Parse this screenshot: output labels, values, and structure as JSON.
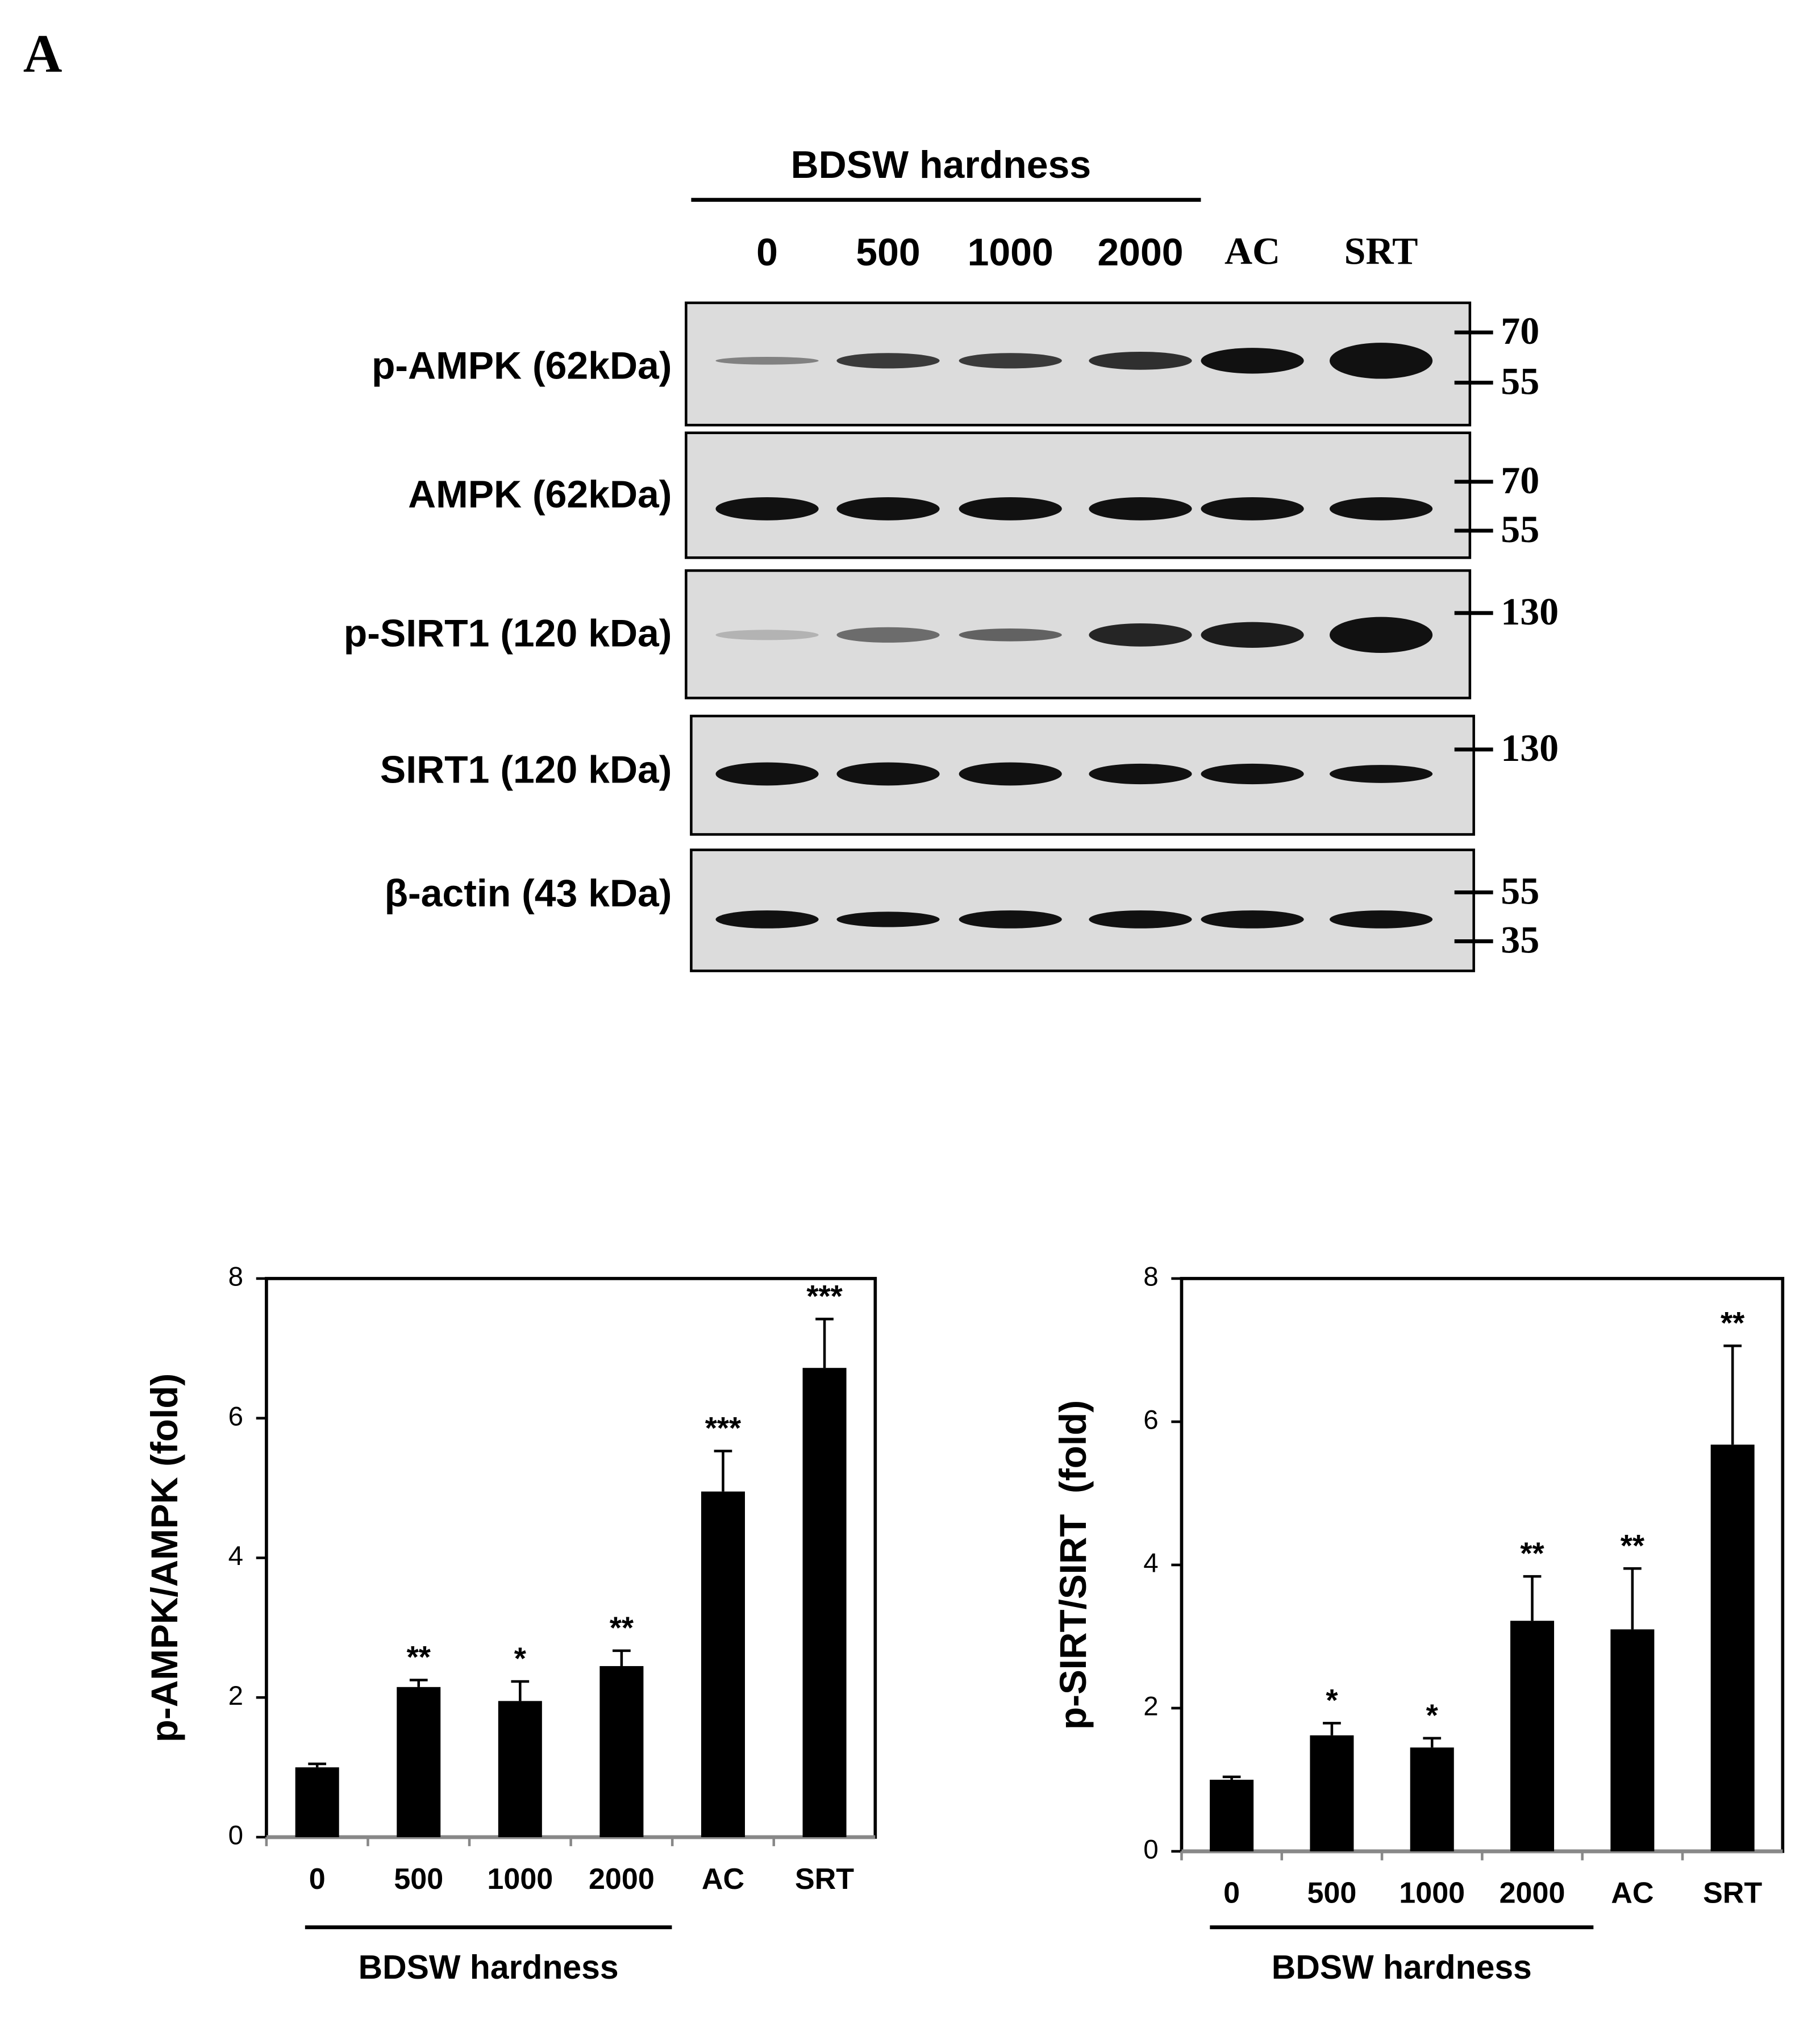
{
  "panel_label": "A",
  "blot": {
    "header": "BDSW hardness",
    "lanes": [
      "0",
      "500",
      "1000",
      "2000",
      "AC",
      "SRT"
    ],
    "rows": [
      {
        "label": "p-AMPK (62kDa)",
        "markers": [
          "70",
          "55"
        ]
      },
      {
        "label": "AMPK (62kDa)",
        "markers": [
          "70",
          "55"
        ]
      },
      {
        "label": "p-SIRT1 (120 kDa)",
        "markers": [
          "130"
        ]
      },
      {
        "label": "SIRT1 (120 kDa)",
        "markers": [
          "130"
        ]
      },
      {
        "label": "β-actin (43 kDa)",
        "markers": [
          "55",
          "35"
        ]
      }
    ]
  },
  "chart_data": [
    {
      "type": "bar",
      "ylabel": "p-AMPK/AMPK (fold)",
      "xlabel": "BDSW hardness",
      "categories": [
        "0",
        "500",
        "1000",
        "2000",
        "AC",
        "SRT"
      ],
      "values": [
        1.0,
        2.15,
        1.95,
        2.45,
        4.95,
        6.72
      ],
      "errors": [
        0.05,
        0.1,
        0.28,
        0.22,
        0.58,
        0.7
      ],
      "significance": [
        null,
        "**",
        "*",
        "**",
        "***",
        "***"
      ],
      "color": "#000000",
      "ylim": [
        0,
        8
      ],
      "yticks": [
        0,
        2,
        4,
        6,
        8
      ]
    },
    {
      "type": "bar",
      "ylabel": "p-SIRT/SIRT  (fold)",
      "xlabel": "BDSW hardness",
      "categories": [
        "0",
        "500",
        "1000",
        "2000",
        "AC",
        "SRT"
      ],
      "values": [
        1.0,
        1.62,
        1.45,
        3.22,
        3.1,
        5.68
      ],
      "errors": [
        0.04,
        0.17,
        0.13,
        0.62,
        0.85,
        1.38
      ],
      "significance": [
        null,
        "*",
        "*",
        "**",
        "**",
        "**"
      ],
      "color": "#000000",
      "ylim": [
        0,
        8
      ],
      "yticks": [
        0,
        2,
        4,
        6,
        8
      ]
    }
  ]
}
